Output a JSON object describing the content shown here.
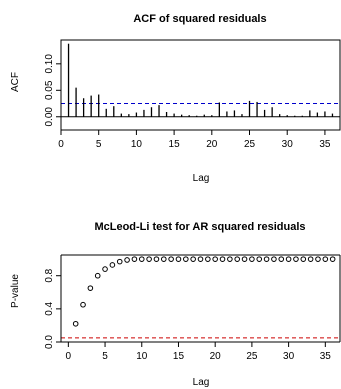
{
  "chart_data": [
    {
      "type": "bar",
      "title": "ACF of squared residuals",
      "xlabel": "Lag",
      "ylabel": "ACF",
      "xlim": [
        0,
        37
      ],
      "ylim": [
        -0.025,
        0.145
      ],
      "xticks": [
        0,
        5,
        10,
        15,
        20,
        25,
        30,
        35
      ],
      "xtick_labels": [
        "0",
        "5",
        "10",
        "15",
        "20",
        "25",
        "30",
        "35"
      ],
      "yticks": [
        0.0,
        0.05,
        0.1
      ],
      "ytick_labels": [
        "0.00",
        "0.05",
        "0.10"
      ],
      "lags": [
        1,
        2,
        3,
        4,
        5,
        6,
        7,
        8,
        9,
        10,
        11,
        12,
        13,
        14,
        15,
        16,
        17,
        18,
        19,
        20,
        21,
        22,
        23,
        24,
        25,
        26,
        27,
        28,
        29,
        30,
        31,
        32,
        33,
        34,
        35,
        36
      ],
      "values": [
        0.138,
        0.055,
        0.035,
        0.04,
        0.042,
        0.015,
        0.02,
        0.006,
        0.005,
        0.008,
        0.013,
        0.018,
        0.022,
        0.009,
        0.006,
        0.004,
        0.003,
        0.002,
        0.004,
        0.003,
        0.027,
        0.01,
        0.012,
        0.005,
        0.03,
        0.028,
        0.013,
        0.018,
        0.005,
        0.003,
        0.002,
        0.002,
        0.012,
        0.008,
        0.01,
        0.006
      ],
      "confidence_bands": {
        "upper": 0.025,
        "lower": -0.025,
        "color": "#0000cc"
      },
      "reference_line": {
        "y": 0,
        "color": "#000000"
      },
      "grid": false,
      "legend": "none"
    },
    {
      "type": "scatter",
      "title": "McLeod-Li test for AR squared residuals",
      "xlabel": "Lag",
      "ylabel": "P-value",
      "xlim": [
        -1,
        37
      ],
      "ylim": [
        0,
        1.05
      ],
      "xticks": [
        0,
        5,
        10,
        15,
        20,
        25,
        30,
        35
      ],
      "xtick_labels": [
        "0",
        "5",
        "10",
        "15",
        "20",
        "25",
        "30",
        "35"
      ],
      "yticks": [
        0.0,
        0.4,
        0.8
      ],
      "ytick_labels": [
        "0.0",
        "0.4",
        "0.8"
      ],
      "x": [
        1,
        2,
        3,
        4,
        5,
        6,
        7,
        8,
        9,
        10,
        11,
        12,
        13,
        14,
        15,
        16,
        17,
        18,
        19,
        20,
        21,
        22,
        23,
        24,
        25,
        26,
        27,
        28,
        29,
        30,
        31,
        32,
        33,
        34,
        35,
        36
      ],
      "y": [
        0.22,
        0.45,
        0.65,
        0.8,
        0.88,
        0.93,
        0.97,
        0.99,
        1,
        1,
        1,
        1,
        1,
        1,
        1,
        1,
        1,
        1,
        1,
        1,
        1,
        1,
        1,
        1,
        1,
        1,
        1,
        1,
        1,
        1,
        1,
        1,
        1,
        1,
        1,
        1
      ],
      "reference_line": {
        "y": 0.05,
        "color": "#cc0000"
      },
      "grid": false,
      "legend": "none"
    }
  ]
}
